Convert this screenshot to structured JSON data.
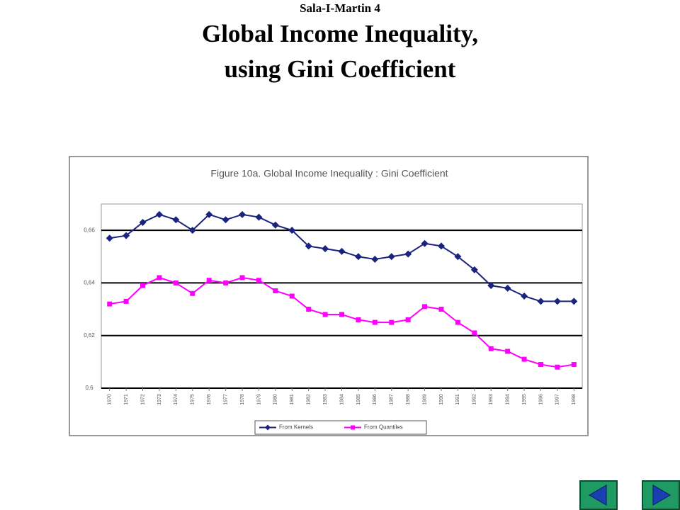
{
  "header": {
    "author": "Sala-I-Martin 4",
    "title_line1": "Global Income Inequality,",
    "title_line2": "using Gini Coefficient"
  },
  "chart_data": {
    "type": "line",
    "title": "Figure 10a. Global Income Inequality : Gini Coefficient",
    "categories": [
      "1970",
      "1971",
      "1972",
      "1973",
      "1974",
      "1975",
      "1976",
      "1977",
      "1978",
      "1979",
      "1980",
      "1981",
      "1982",
      "1983",
      "1984",
      "1985",
      "1986",
      "1987",
      "1988",
      "1989",
      "1990",
      "1991",
      "1992",
      "1993",
      "1994",
      "1995",
      "1996",
      "1997",
      "1998"
    ],
    "series": [
      {
        "name": "From Kernels",
        "color": "#1a237e",
        "marker": "diamond",
        "values": [
          0.657,
          0.658,
          0.663,
          0.666,
          0.664,
          0.66,
          0.666,
          0.664,
          0.666,
          0.665,
          0.662,
          0.66,
          0.654,
          0.653,
          0.652,
          0.65,
          0.649,
          0.65,
          0.651,
          0.655,
          0.654,
          0.65,
          0.645,
          0.639,
          0.638,
          0.635,
          0.633,
          0.633,
          0.633
        ]
      },
      {
        "name": "From Quantiles",
        "color": "#ff00ff",
        "marker": "square",
        "values": [
          0.632,
          0.633,
          0.639,
          0.642,
          0.64,
          0.636,
          0.641,
          0.64,
          0.642,
          0.641,
          0.637,
          0.635,
          0.63,
          0.628,
          0.628,
          0.626,
          0.625,
          0.625,
          0.626,
          0.631,
          0.63,
          0.625,
          0.621,
          0.615,
          0.614,
          0.611,
          0.609,
          0.608,
          0.609
        ]
      }
    ],
    "ylim": [
      0.6,
      0.67
    ],
    "yticks": [
      {
        "value": 0.6,
        "label": "0,6"
      },
      {
        "value": 0.62,
        "label": "0,62"
      },
      {
        "value": 0.64,
        "label": "0,64"
      },
      {
        "value": 0.66,
        "label": "0,66"
      }
    ],
    "grid": true,
    "legend": "bottom"
  }
}
